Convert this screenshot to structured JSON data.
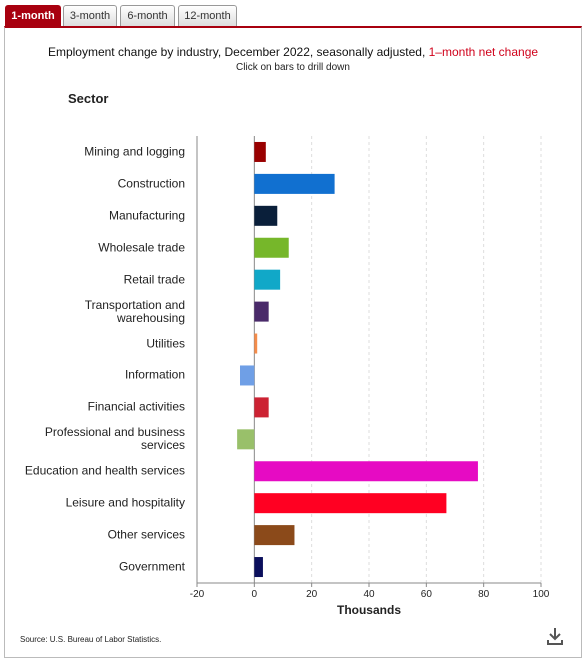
{
  "tabs": [
    "1-month",
    "3-month",
    "6-month",
    "12-month"
  ],
  "chart_data": {
    "type": "bar",
    "orientation": "horizontal",
    "title": "Employment change by industry, December 2022, seasonally adjusted,",
    "title_emphasis": "1–month net change",
    "subtitle": "Click on bars to drill down",
    "ylabel": "Sector",
    "xlabel": "Thousands",
    "categories": [
      "Mining and logging",
      "Construction",
      "Manufacturing",
      "Wholesale trade",
      "Retail trade",
      "Transportation and warehousing",
      "Utilities",
      "Information",
      "Financial activities",
      "Professional and business services",
      "Education and health services",
      "Leisure and hospitality",
      "Other services",
      "Government"
    ],
    "values": [
      4,
      28,
      8,
      12,
      9,
      5,
      1,
      -5,
      5,
      -6,
      78,
      67,
      14,
      3
    ],
    "colors": [
      "#990000",
      "#1170d0",
      "#0a1f3a",
      "#76b72a",
      "#11a8c8",
      "#4a2a6a",
      "#f58c4a",
      "#6f9fe6",
      "#cc2233",
      "#99c06a",
      "#e60bc3",
      "#ff0022",
      "#8b4a1a",
      "#0b0f5c"
    ],
    "xlim": [
      -20,
      100
    ],
    "xticks": [
      -20,
      0,
      20,
      40,
      60,
      80,
      100
    ],
    "grid": true
  },
  "source": "Source: U.S. Bureau of Labor Statistics."
}
